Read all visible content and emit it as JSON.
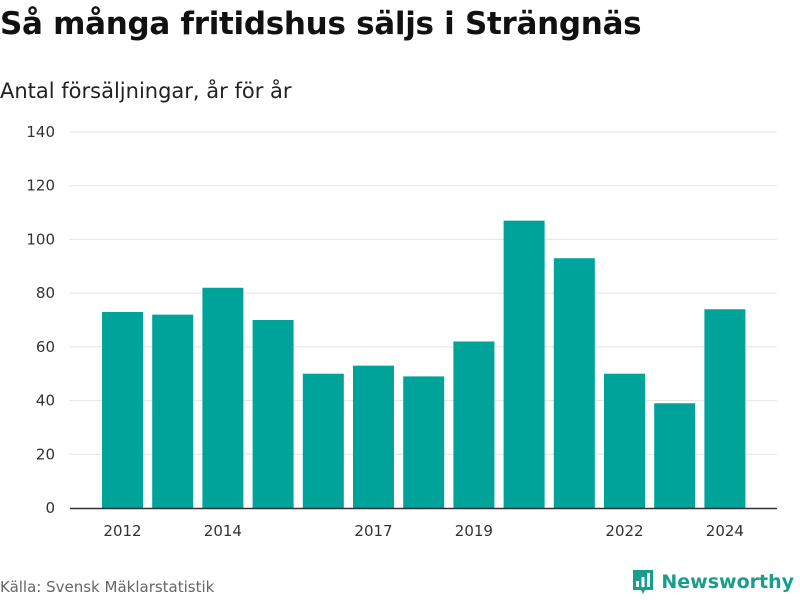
{
  "header": {
    "title": "Så många fritidshus säljs i Strängnäs",
    "subtitle": "Antal försäljningar, år för år"
  },
  "footer": {
    "source": "Källa: Svensk Mäklarstatistik",
    "brand": "Newsworthy",
    "brand_icon": "bar-chart-logo-icon"
  },
  "colors": {
    "bar": "#00a39a",
    "brand": "#1a9e8c",
    "grid": "#e3e3e3",
    "axis": "#333333"
  },
  "chart_data": {
    "type": "bar",
    "title": "Så många fritidshus säljs i Strängnäs",
    "subtitle": "Antal försäljningar, år för år",
    "xlabel": "",
    "ylabel": "",
    "x": [
      2012,
      2013,
      2014,
      2015,
      2016,
      2017,
      2018,
      2019,
      2020,
      2021,
      2022,
      2023,
      2024
    ],
    "values": [
      73,
      72,
      82,
      70,
      50,
      53,
      49,
      62,
      107,
      93,
      50,
      39,
      74
    ],
    "x_tick_labels": [
      "2012",
      "2014",
      "2017",
      "2019",
      "2022",
      "2024"
    ],
    "y_ticks": [
      0,
      20,
      40,
      60,
      80,
      100,
      120,
      140
    ],
    "ylim": [
      0,
      140
    ],
    "grid": true,
    "legend": "none"
  }
}
